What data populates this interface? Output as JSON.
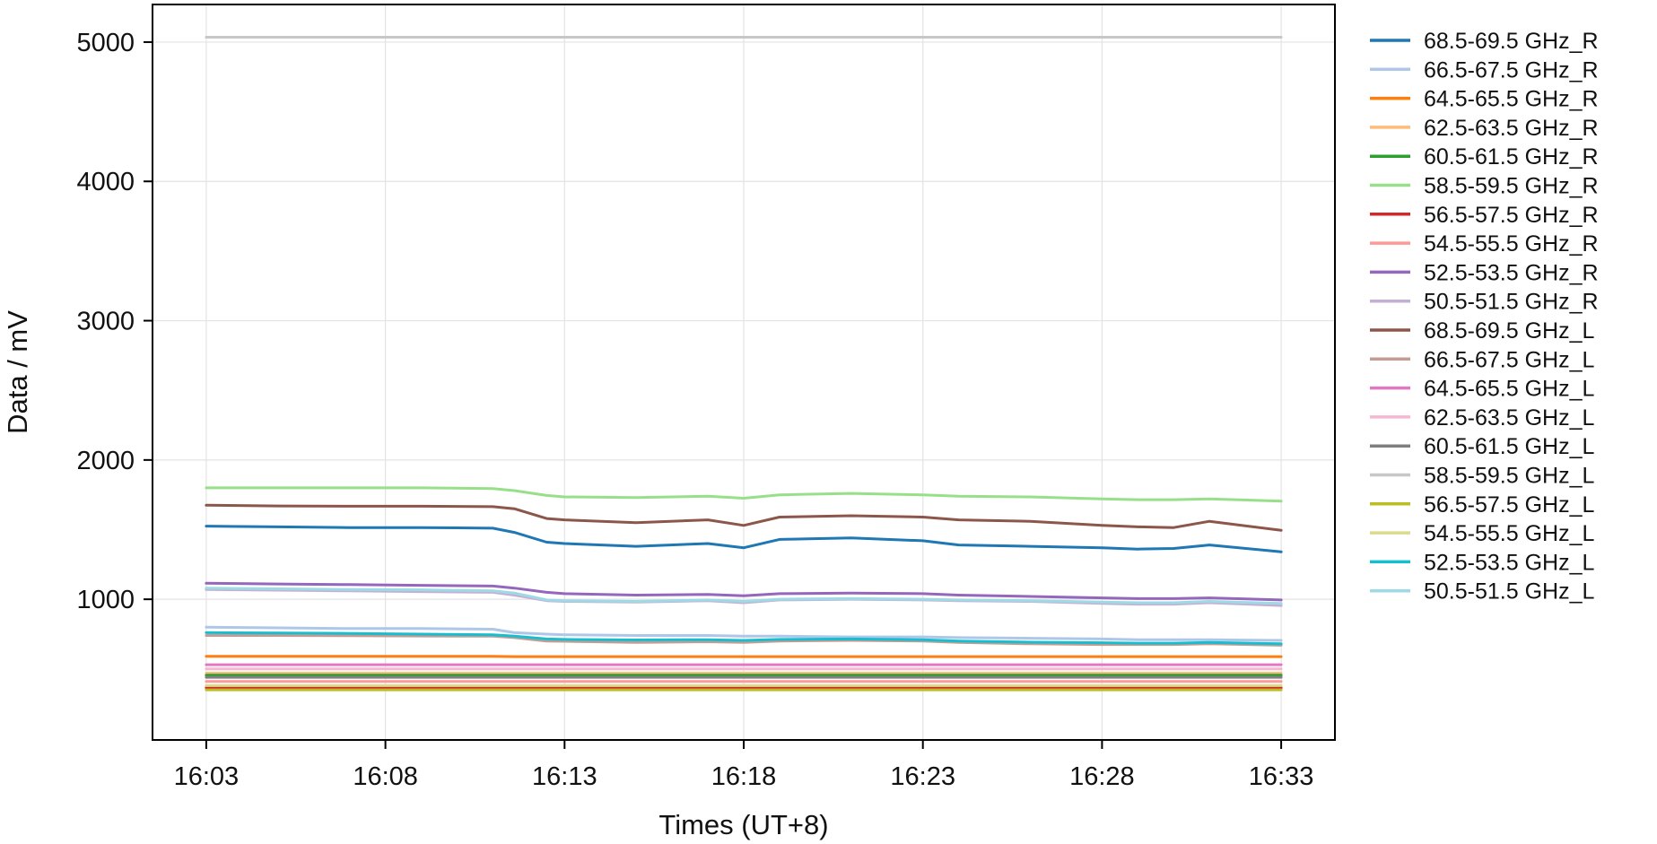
{
  "chart_data": {
    "type": "line",
    "xlabel": "Times (UT+8)",
    "ylabel": "Data / mV",
    "x_ticks": [
      "16:03",
      "16:08",
      "16:13",
      "16:18",
      "16:23",
      "16:28",
      "16:33"
    ],
    "x_tick_minutes": [
      0,
      5,
      10,
      15,
      20,
      25,
      30
    ],
    "xlim_minutes": [
      -1.5,
      31.5
    ],
    "y_ticks": [
      1000,
      2000,
      3000,
      4000,
      5000
    ],
    "ylim": [
      -10,
      5270
    ],
    "grid": true,
    "legend_position": "outside-right",
    "x_minutes": [
      0,
      2,
      4,
      6,
      8,
      8.6,
      9.5,
      10,
      12,
      14,
      15,
      16,
      18,
      20,
      21,
      23,
      25,
      26,
      27,
      28,
      30
    ],
    "series": [
      {
        "name": "68.5-69.5 GHz_R",
        "color": "#1f77b4",
        "values": [
          1525,
          1520,
          1515,
          1515,
          1510,
          1480,
          1410,
          1400,
          1380,
          1400,
          1370,
          1430,
          1440,
          1420,
          1390,
          1380,
          1370,
          1360,
          1365,
          1390,
          1340
        ]
      },
      {
        "name": "66.5-67.5 GHz_R",
        "color": "#aec7e8",
        "values": [
          800,
          795,
          790,
          790,
          785,
          760,
          750,
          745,
          740,
          740,
          735,
          735,
          730,
          730,
          725,
          720,
          715,
          710,
          710,
          710,
          705
        ]
      },
      {
        "name": "64.5-65.5 GHz_R",
        "color": "#ff7f0e",
        "values": [
          590,
          590,
          590,
          590,
          590,
          588,
          588,
          588,
          588,
          588,
          588,
          588,
          588,
          588,
          588,
          588,
          588,
          588,
          588,
          588,
          588
        ]
      },
      {
        "name": "62.5-63.5 GHz_R",
        "color": "#ffbb78",
        "values": [
          470,
          470,
          470,
          470,
          470,
          470,
          470,
          470,
          470,
          470,
          470,
          470,
          470,
          470,
          470,
          470,
          470,
          470,
          470,
          470,
          470
        ]
      },
      {
        "name": "60.5-61.5 GHz_R",
        "color": "#2ca02c",
        "values": [
          455,
          455,
          455,
          455,
          455,
          455,
          455,
          455,
          455,
          455,
          455,
          455,
          455,
          455,
          455,
          455,
          455,
          455,
          455,
          455,
          455
        ]
      },
      {
        "name": "58.5-59.5 GHz_R",
        "color": "#98df8a",
        "values": [
          1800,
          1800,
          1800,
          1800,
          1795,
          1780,
          1745,
          1735,
          1730,
          1740,
          1725,
          1750,
          1760,
          1750,
          1740,
          1735,
          1720,
          1715,
          1715,
          1720,
          1705
        ]
      },
      {
        "name": "56.5-57.5 GHz_R",
        "color": "#d62728",
        "values": [
          365,
          365,
          365,
          365,
          365,
          365,
          365,
          365,
          365,
          365,
          365,
          365,
          365,
          365,
          365,
          365,
          365,
          365,
          365,
          365,
          365
        ]
      },
      {
        "name": "54.5-55.5 GHz_R",
        "color": "#ff9896",
        "values": [
          410,
          410,
          410,
          410,
          410,
          410,
          410,
          410,
          410,
          410,
          410,
          410,
          410,
          410,
          410,
          410,
          410,
          410,
          410,
          410,
          410
        ]
      },
      {
        "name": "52.5-53.5 GHz_R",
        "color": "#9467bd",
        "values": [
          1115,
          1110,
          1105,
          1100,
          1095,
          1080,
          1050,
          1040,
          1030,
          1035,
          1025,
          1040,
          1045,
          1040,
          1030,
          1020,
          1010,
          1005,
          1005,
          1010,
          995
        ]
      },
      {
        "name": "50.5-51.5 GHz_R",
        "color": "#c5b0d5",
        "values": [
          1070,
          1065,
          1060,
          1055,
          1050,
          1030,
          990,
          985,
          980,
          990,
          975,
          995,
          1000,
          995,
          990,
          985,
          970,
          965,
          965,
          975,
          955
        ]
      },
      {
        "name": "68.5-69.5 GHz_L",
        "color": "#8c564b",
        "values": [
          1675,
          1670,
          1668,
          1668,
          1665,
          1650,
          1580,
          1570,
          1550,
          1570,
          1530,
          1590,
          1600,
          1590,
          1570,
          1560,
          1530,
          1520,
          1515,
          1560,
          1495
        ]
      },
      {
        "name": "66.5-67.5 GHz_L",
        "color": "#c49c94",
        "values": [
          740,
          740,
          738,
          736,
          735,
          725,
          700,
          698,
          690,
          695,
          690,
          700,
          705,
          700,
          690,
          680,
          675,
          675,
          675,
          680,
          670
        ]
      },
      {
        "name": "64.5-65.5 GHz_L",
        "color": "#e377c2",
        "values": [
          530,
          530,
          530,
          530,
          530,
          530,
          530,
          530,
          530,
          530,
          530,
          530,
          530,
          530,
          530,
          530,
          530,
          530,
          530,
          530,
          530
        ]
      },
      {
        "name": "62.5-63.5 GHz_L",
        "color": "#f7b6d2",
        "values": [
          500,
          500,
          500,
          500,
          500,
          500,
          500,
          500,
          500,
          500,
          500,
          500,
          500,
          500,
          500,
          500,
          500,
          500,
          500,
          500,
          500
        ]
      },
      {
        "name": "60.5-61.5 GHz_L",
        "color": "#7f7f7f",
        "values": [
          440,
          440,
          440,
          440,
          440,
          440,
          440,
          440,
          440,
          440,
          440,
          440,
          440,
          440,
          440,
          440,
          440,
          440,
          440,
          440,
          440
        ]
      },
      {
        "name": "58.5-59.5 GHz_L",
        "color": "#c7c7c7",
        "values": [
          5035,
          5035,
          5035,
          5035,
          5035,
          5035,
          5035,
          5035,
          5035,
          5035,
          5035,
          5035,
          5035,
          5035,
          5035,
          5035,
          5035,
          5035,
          5035,
          5035,
          5035
        ]
      },
      {
        "name": "56.5-57.5 GHz_L",
        "color": "#bcbd22",
        "values": [
          350,
          350,
          350,
          350,
          350,
          350,
          350,
          350,
          350,
          350,
          350,
          350,
          350,
          350,
          350,
          350,
          350,
          350,
          350,
          350,
          350
        ]
      },
      {
        "name": "54.5-55.5 GHz_L",
        "color": "#dbdb8d",
        "values": [
          380,
          380,
          380,
          380,
          380,
          380,
          380,
          380,
          380,
          380,
          380,
          380,
          380,
          380,
          380,
          380,
          380,
          380,
          380,
          380,
          380
        ]
      },
      {
        "name": "52.5-53.5 GHz_L",
        "color": "#17becf",
        "values": [
          760,
          758,
          755,
          750,
          745,
          735,
          715,
          712,
          708,
          710,
          705,
          712,
          715,
          710,
          700,
          692,
          688,
          685,
          685,
          690,
          680
        ]
      },
      {
        "name": "50.5-51.5 GHz_L",
        "color": "#9edae5",
        "values": [
          1080,
          1075,
          1070,
          1068,
          1060,
          1045,
          995,
          990,
          985,
          995,
          985,
          1000,
          1005,
          1000,
          995,
          990,
          980,
          975,
          975,
          985,
          970
        ]
      }
    ]
  }
}
